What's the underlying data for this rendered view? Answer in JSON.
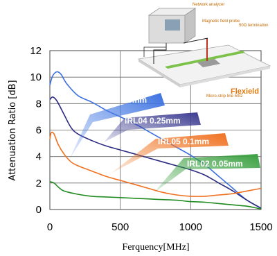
{
  "chart_data": {
    "type": "line",
    "title": "",
    "xlabel": "Ferquency[MHz]",
    "ylabel": "Attenuation Ratio [dB]",
    "xlim": [
      0,
      1500
    ],
    "ylim": [
      0,
      12
    ],
    "xticks": [
      0,
      500,
      1000,
      1500
    ],
    "xtick_labels": [
      "0",
      "500",
      "1000",
      "1500"
    ],
    "yticks": [
      0,
      2,
      4,
      6,
      8,
      10,
      12
    ],
    "ytick_labels": [
      "0",
      "2",
      "4",
      "6",
      "8",
      "10",
      "12"
    ],
    "grid": true,
    "series": [
      {
        "name": "IRL04 0.5mm",
        "color": "#3a6fe0",
        "x": [
          0,
          20,
          50,
          80,
          120,
          200,
          300,
          400,
          500,
          600,
          700,
          800,
          900,
          1000,
          1100,
          1200,
          1300,
          1400,
          1500
        ],
        "y": [
          9.4,
          10.1,
          10.4,
          10.2,
          9.5,
          8.6,
          8.1,
          7.5,
          7.0,
          6.5,
          5.9,
          5.3,
          4.7,
          4.1,
          3.4,
          2.5,
          1.6,
          0.7,
          0.1
        ]
      },
      {
        "name": "IRL04 0.25mm",
        "color": "#2a2a80",
        "x": [
          0,
          20,
          50,
          100,
          150,
          200,
          300,
          400,
          500,
          600,
          700,
          800,
          900,
          1000,
          1100,
          1200,
          1300,
          1400,
          1500
        ],
        "y": [
          8.3,
          8.5,
          8.2,
          7.2,
          6.2,
          5.7,
          5.2,
          4.8,
          4.5,
          4.2,
          3.9,
          3.6,
          3.3,
          3.0,
          2.6,
          2.0,
          1.4,
          0.7,
          0.1
        ]
      },
      {
        "name": "IRL05 0.1mm",
        "color": "#f07020",
        "x": [
          0,
          10,
          30,
          60,
          100,
          150,
          200,
          300,
          400,
          500,
          600,
          700,
          800,
          900,
          1000,
          1100,
          1200,
          1300,
          1400,
          1450,
          1500
        ],
        "y": [
          5.3,
          5.8,
          5.7,
          4.9,
          4.2,
          3.6,
          3.3,
          2.9,
          2.5,
          2.2,
          1.9,
          1.6,
          1.3,
          1.1,
          1.0,
          1.0,
          1.1,
          1.2,
          1.4,
          1.5,
          1.6
        ]
      },
      {
        "name": "IRL02 0.05mm",
        "color": "#1f8a1f",
        "x": [
          0,
          30,
          60,
          100,
          200,
          300,
          400,
          500,
          600,
          700,
          800,
          900,
          1000,
          1100,
          1200,
          1300,
          1400,
          1450,
          1500
        ],
        "y": [
          2.1,
          2.0,
          1.7,
          1.4,
          1.15,
          1.0,
          0.95,
          0.9,
          0.85,
          0.8,
          0.75,
          0.7,
          0.6,
          0.55,
          0.45,
          0.35,
          0.25,
          0.15,
          0.05
        ]
      }
    ]
  },
  "inset": {
    "network_analyzer": "Network analyzer",
    "magnetic_field_probe": "Magnetic field probe",
    "termination": "50Ω termination",
    "microstrip": "Micro-strip line 50Ω",
    "flexield": "Flexield"
  }
}
